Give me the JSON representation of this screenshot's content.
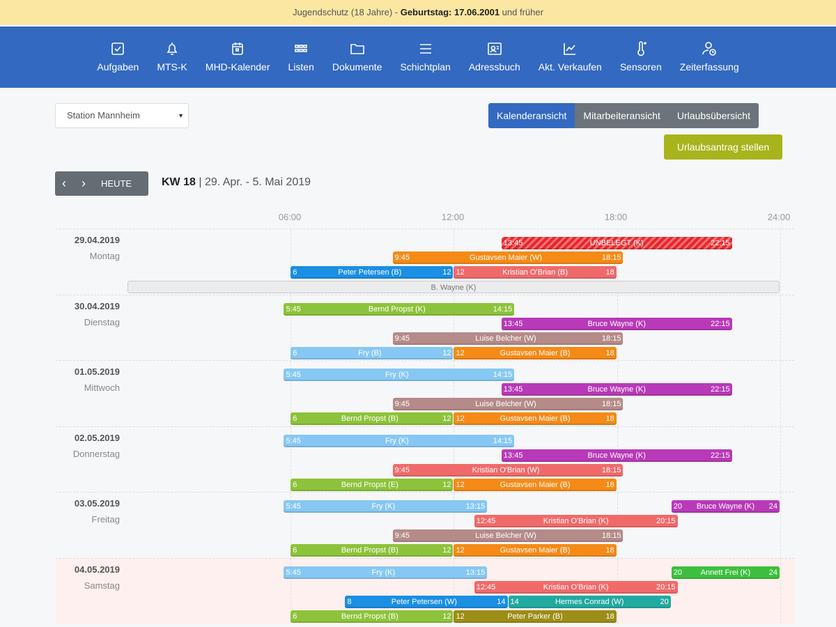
{
  "banner": {
    "prefix": "Jugendschutz (18 Jahre) - ",
    "bold": "Geburtstag: 17.06.2001",
    "suffix": " und früher"
  },
  "nav": [
    {
      "label": "Aufgaben",
      "icon": "checkbox-icon"
    },
    {
      "label": "MTS-K",
      "icon": "bell-icon"
    },
    {
      "label": "MHD-Kalender",
      "icon": "calendar-icon"
    },
    {
      "label": "Listen",
      "icon": "grid-icon"
    },
    {
      "label": "Dokumente",
      "icon": "folder-icon"
    },
    {
      "label": "Schichtplan",
      "icon": "menu-icon"
    },
    {
      "label": "Adressbuch",
      "icon": "contact-icon"
    },
    {
      "label": "Akt. Verkaufen",
      "icon": "chart-icon"
    },
    {
      "label": "Sensoren",
      "icon": "thermometer-icon"
    },
    {
      "label": "Zeiterfassung",
      "icon": "user-clock-icon"
    }
  ],
  "station": "Station Mannheim",
  "views": [
    "Kalenderansicht",
    "Mitarbeiteransicht",
    "Urlaubsübersicht"
  ],
  "request_button": "Urlaubsantrag stellen",
  "today_button": "HEUTE",
  "week": {
    "kw": "KW 18",
    "range": " | 29. Apr. - 5. Mai 2019"
  },
  "hours": [
    "06:00",
    "12:00",
    "18:00",
    "24:00"
  ],
  "colors": {
    "orange": "#f58a16",
    "blue": "#1a8fe3",
    "red": "#f06a6a",
    "lightblue": "#86c8f3",
    "green": "#8dc33a",
    "purple": "#b83ab8",
    "mauve": "#b58b89",
    "teal": "#22a9a0",
    "olive": "#9c8d16",
    "green2": "#3dbf3d",
    "gray": "#ececec",
    "unassigned": "#e8262b"
  },
  "days": [
    {
      "date": "29.04.2019",
      "weekday": "Montag",
      "weekend": false,
      "lanes": [
        [
          {
            "start": 13.75,
            "end": 22.25,
            "s": "13:45",
            "name": "UNBELEGT (K)",
            "e": "22:15",
            "color": "unassigned",
            "striped": true
          }
        ],
        [
          {
            "start": 9.75,
            "end": 18.25,
            "s": "9:45",
            "name": "Gustavsen Maier (W)",
            "e": "18:15",
            "color": "orange"
          }
        ],
        [
          {
            "start": 6,
            "end": 12,
            "s": "6",
            "name": "Peter Petersen (B)",
            "e": "12",
            "color": "blue"
          },
          {
            "start": 12,
            "end": 18,
            "s": "12",
            "name": "Kristian O'Brian (B)",
            "e": "18",
            "color": "red"
          }
        ],
        [
          {
            "start": 0,
            "end": 24,
            "s": "",
            "name": "B. Wayne (K)",
            "e": "",
            "color": "gray"
          }
        ]
      ]
    },
    {
      "date": "30.04.2019",
      "weekday": "Dienstag",
      "weekend": false,
      "lanes": [
        [
          {
            "start": 5.75,
            "end": 14.25,
            "s": "5:45",
            "name": "Bernd Propst (K)",
            "e": "14:15",
            "color": "green"
          }
        ],
        [
          {
            "start": 13.75,
            "end": 22.25,
            "s": "13:45",
            "name": "Bruce Wayne (K)",
            "e": "22:15",
            "color": "purple"
          }
        ],
        [
          {
            "start": 9.75,
            "end": 18.25,
            "s": "9:45",
            "name": "Luise Belcher (W)",
            "e": "18:15",
            "color": "mauve"
          }
        ],
        [
          {
            "start": 6,
            "end": 12,
            "s": "6",
            "name": "Fry (B)",
            "e": "12",
            "color": "lightblue"
          },
          {
            "start": 12,
            "end": 18,
            "s": "12",
            "name": "Gustavsen Maier (B)",
            "e": "18",
            "color": "orange"
          }
        ]
      ]
    },
    {
      "date": "01.05.2019",
      "weekday": "Mittwoch",
      "weekend": false,
      "lanes": [
        [
          {
            "start": 5.75,
            "end": 14.25,
            "s": "5:45",
            "name": "Fry (K)",
            "e": "14:15",
            "color": "lightblue"
          }
        ],
        [
          {
            "start": 13.75,
            "end": 22.25,
            "s": "13:45",
            "name": "Bruce Wayne (K)",
            "e": "22:15",
            "color": "purple"
          }
        ],
        [
          {
            "start": 9.75,
            "end": 18.25,
            "s": "9:45",
            "name": "Luise Belcher (W)",
            "e": "18:15",
            "color": "mauve"
          }
        ],
        [
          {
            "start": 6,
            "end": 12,
            "s": "6",
            "name": "Bernd Propst (B)",
            "e": "12",
            "color": "green"
          },
          {
            "start": 12,
            "end": 18,
            "s": "12",
            "name": "Gustavsen Maier (B)",
            "e": "18",
            "color": "orange"
          }
        ]
      ]
    },
    {
      "date": "02.05.2019",
      "weekday": "Donnerstag",
      "weekend": false,
      "lanes": [
        [
          {
            "start": 5.75,
            "end": 14.25,
            "s": "5:45",
            "name": "Fry (K)",
            "e": "14:15",
            "color": "lightblue"
          }
        ],
        [
          {
            "start": 13.75,
            "end": 22.25,
            "s": "13:45",
            "name": "Bruce Wayne (K)",
            "e": "22:15",
            "color": "purple"
          }
        ],
        [
          {
            "start": 9.75,
            "end": 18.25,
            "s": "9:45",
            "name": "Kristian O'Brian (W)",
            "e": "18:15",
            "color": "red"
          }
        ],
        [
          {
            "start": 6,
            "end": 12,
            "s": "6",
            "name": "Bernd Propst (E)",
            "e": "12",
            "color": "green"
          },
          {
            "start": 12,
            "end": 18,
            "s": "12",
            "name": "Gustavsen Maier (B)",
            "e": "18",
            "color": "orange"
          }
        ]
      ]
    },
    {
      "date": "03.05.2019",
      "weekday": "Freitag",
      "weekend": false,
      "lanes": [
        [
          {
            "start": 5.75,
            "end": 13.25,
            "s": "5:45",
            "name": "Fry (K)",
            "e": "13:15",
            "color": "lightblue"
          },
          {
            "start": 20,
            "end": 24,
            "s": "20",
            "name": "Bruce Wayne (K)",
            "e": "24",
            "color": "purple"
          }
        ],
        [
          {
            "start": 12.75,
            "end": 20.25,
            "s": "12:45",
            "name": "Kristian O'Brian (K)",
            "e": "20:15",
            "color": "red"
          }
        ],
        [
          {
            "start": 9.75,
            "end": 18.25,
            "s": "9:45",
            "name": "Luise Belcher (W)",
            "e": "18:15",
            "color": "mauve"
          }
        ],
        [
          {
            "start": 6,
            "end": 12,
            "s": "6",
            "name": "Bernd Propst (B)",
            "e": "12",
            "color": "green"
          },
          {
            "start": 12,
            "end": 18,
            "s": "12",
            "name": "Gustavsen Maier (B)",
            "e": "18",
            "color": "orange"
          }
        ]
      ]
    },
    {
      "date": "04.05.2019",
      "weekday": "Samstag",
      "weekend": true,
      "lanes": [
        [
          {
            "start": 5.75,
            "end": 13.25,
            "s": "5:45",
            "name": "Fry (K)",
            "e": "13:15",
            "color": "lightblue"
          },
          {
            "start": 20,
            "end": 24,
            "s": "20",
            "name": "Annett Frei (K)",
            "e": "24",
            "color": "green2"
          }
        ],
        [
          {
            "start": 12.75,
            "end": 20.25,
            "s": "12:45",
            "name": "Kristian O'Brian (K)",
            "e": "20:15",
            "color": "red"
          }
        ],
        [
          {
            "start": 8,
            "end": 14,
            "s": "8",
            "name": "Peter Petersen (W)",
            "e": "14",
            "color": "blue"
          },
          {
            "start": 14,
            "end": 20,
            "s": "14",
            "name": "Hermes Conrad (W)",
            "e": "20",
            "color": "teal"
          }
        ],
        [
          {
            "start": 6,
            "end": 12,
            "s": "6",
            "name": "Bernd Propst (B)",
            "e": "12",
            "color": "green"
          },
          {
            "start": 12,
            "end": 18,
            "s": "12",
            "name": "Peter Parker (B)",
            "e": "18",
            "color": "olive"
          }
        ]
      ]
    }
  ]
}
